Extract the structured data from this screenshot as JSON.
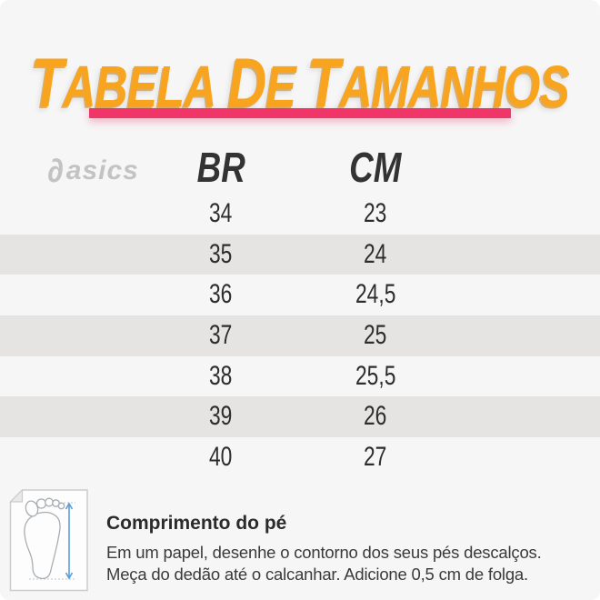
{
  "page": {
    "background_color": "#f6f6f6",
    "accent_pink": "#f03568",
    "title_orange": "#f8a41f"
  },
  "header": {
    "title": "Tabela de Tamanhos"
  },
  "brand": {
    "name": "asics",
    "logo_glyph": "∂",
    "color": "#c3c3c3"
  },
  "table": {
    "headers": [
      "BR",
      "CM"
    ],
    "rows": [
      {
        "br": "34",
        "cm": "23"
      },
      {
        "br": "35",
        "cm": "24"
      },
      {
        "br": "36",
        "cm": "24,5"
      },
      {
        "br": "37",
        "cm": "25"
      },
      {
        "br": "38",
        "cm": "25,5"
      },
      {
        "br": "39",
        "cm": "26"
      },
      {
        "br": "40",
        "cm": "27"
      }
    ],
    "row_alt_color": "#e5e4e3"
  },
  "footer": {
    "heading": "Comprimento do pé",
    "line1": "Em um papel, desenhe o contorno dos seus pés descalços.",
    "line2": "Meça do dedão até o calcanhar. Adicione 0,5 cm de folga.",
    "icon": "foot-measure-icon",
    "arrow_color": "#5b9fd6"
  }
}
